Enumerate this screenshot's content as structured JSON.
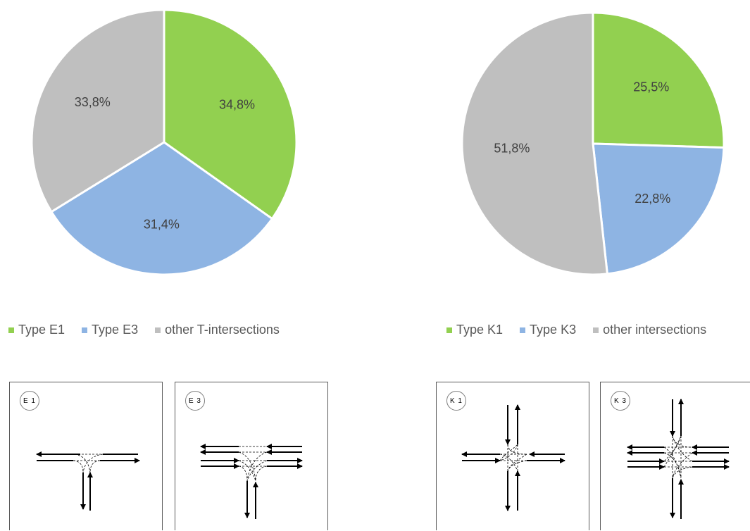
{
  "chart_data": [
    {
      "type": "pie",
      "title": "",
      "categories": [
        "Type E1",
        "Type E3",
        "other T-intersections"
      ],
      "values": [
        34.8,
        31.4,
        33.8
      ],
      "labels": [
        "34,8%",
        "31,4%",
        "33,8%"
      ],
      "colors": [
        "#92d050",
        "#8eb4e3",
        "#bfbfbf"
      ],
      "legend": "bottom"
    },
    {
      "type": "pie",
      "title": "",
      "categories": [
        "Type K1",
        "Type K3",
        "other intersections"
      ],
      "values": [
        25.5,
        22.8,
        51.8
      ],
      "labels": [
        "25,5%",
        "22,8%",
        "51,8%"
      ],
      "colors": [
        "#92d050",
        "#8eb4e3",
        "#bfbfbf"
      ],
      "legend": "bottom"
    }
  ],
  "legend_left": [
    "Type E1",
    "Type E3",
    "other T-intersections"
  ],
  "legend_right": [
    "Type K1",
    "Type K3",
    "other intersections"
  ],
  "diagrams": {
    "e1": "E 1",
    "e3": "E 3",
    "k1": "K 1",
    "k3": "K 3"
  }
}
